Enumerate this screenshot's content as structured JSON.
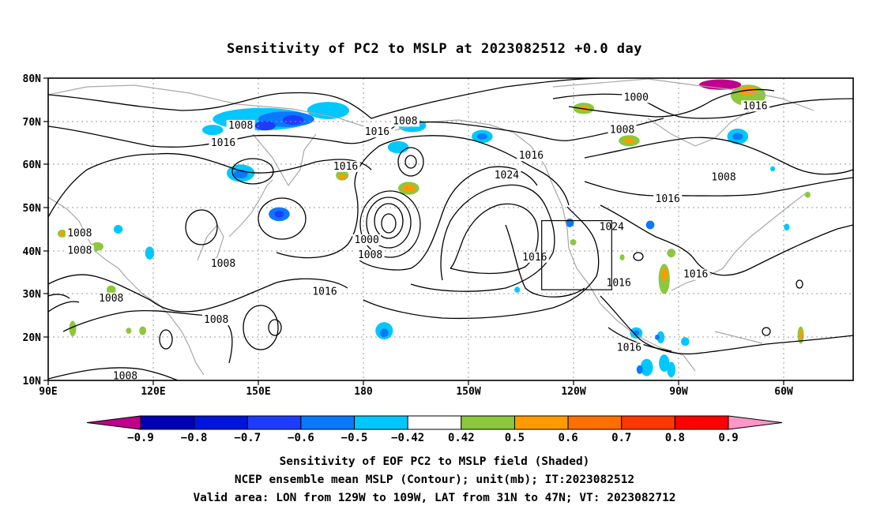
{
  "title": "Sensitivity of PC2 to MSLP at 2023082512 +0.0 day",
  "lat_ticks": [
    "80N",
    "70N",
    "60N",
    "50N",
    "40N",
    "30N",
    "20N",
    "10N"
  ],
  "lon_ticks": [
    "90E",
    "120E",
    "150E",
    "180",
    "150W",
    "120W",
    "90W",
    "60W"
  ],
  "contour_labels": [
    {
      "text": "1008",
      "lon": 145,
      "lat": 68.5
    },
    {
      "text": "1016",
      "lon": 140,
      "lat": 64.5
    },
    {
      "text": "1016",
      "lon": 184,
      "lat": 67
    },
    {
      "text": "1008",
      "lon": 192,
      "lat": 69.5
    },
    {
      "text": "1016",
      "lon": 175,
      "lat": 59
    },
    {
      "text": "1016",
      "lon": 228,
      "lat": 61.5
    },
    {
      "text": "1024",
      "lon": 221,
      "lat": 57
    },
    {
      "text": "1000",
      "lon": 258,
      "lat": 75
    },
    {
      "text": "1008",
      "lon": 254,
      "lat": 67.5
    },
    {
      "text": "1016",
      "lon": 292,
      "lat": 73
    },
    {
      "text": "1008",
      "lon": 283,
      "lat": 56.5
    },
    {
      "text": "1016",
      "lon": 267,
      "lat": 51.5
    },
    {
      "text": "1000",
      "lon": 181,
      "lat": 42
    },
    {
      "text": "1008",
      "lon": 182,
      "lat": 38.5
    },
    {
      "text": "1016",
      "lon": 229,
      "lat": 38
    },
    {
      "text": "1024",
      "lon": 251,
      "lat": 45
    },
    {
      "text": "1016",
      "lon": 253,
      "lat": 32
    },
    {
      "text": "1016",
      "lon": 275,
      "lat": 34
    },
    {
      "text": "1016",
      "lon": 256,
      "lat": 17
    },
    {
      "text": "1016",
      "lon": 169,
      "lat": 30
    },
    {
      "text": "1008",
      "lon": 140,
      "lat": 36.5
    },
    {
      "text": "1008",
      "lon": 99,
      "lat": 43.5
    },
    {
      "text": "1008",
      "lon": 99,
      "lat": 39.5
    },
    {
      "text": "1008",
      "lon": 108,
      "lat": 28.5
    },
    {
      "text": "1008",
      "lon": 138,
      "lat": 23.5
    },
    {
      "text": "1008",
      "lon": 112,
      "lat": 10.5
    }
  ],
  "colorbar": {
    "colors": [
      "#c0008c",
      "#0000b4",
      "#0014dc",
      "#1e3cff",
      "#0a78ff",
      "#00c8ff",
      "#ffffff",
      "#8cc83c",
      "#ff9b00",
      "#ff6e00",
      "#ff3700",
      "#ff0000",
      "#ff96c8"
    ],
    "labels": [
      "−0.9",
      "−0.8",
      "−0.7",
      "−0.6",
      "−0.5",
      "−0.42",
      "0.42",
      "0.5",
      "0.6",
      "0.7",
      "0.8",
      "0.9"
    ]
  },
  "caption": {
    "line1": "Sensitivity of EOF PC2 to MSLP field (Shaded)",
    "line2": "NCEP ensemble mean MSLP (Contour); unit(mb); IT:2023082512",
    "line3": "Valid area: LON from 129W to 109W, LAT from 31N to 47N; VT: 2023082712"
  },
  "valid_area": {
    "lon_min": -129,
    "lon_max": -109,
    "lat_min": 31,
    "lat_max": 47
  },
  "map_extent": {
    "lon_min": 90,
    "lon_max": 320,
    "lat_min": 10,
    "lat_max": 80
  },
  "shaded_blobs": [
    {
      "lon": 151,
      "lat": 70.5,
      "rx": 14,
      "ry": 2.6,
      "color": "#00c8ff"
    },
    {
      "lon": 158,
      "lat": 70.5,
      "rx": 8,
      "ry": 1.8,
      "color": "#0a78ff"
    },
    {
      "lon": 160,
      "lat": 70.3,
      "rx": 3,
      "ry": 1.1,
      "color": "#1e3cff"
    },
    {
      "lon": 152,
      "lat": 69.0,
      "rx": 3,
      "ry": 1.1,
      "color": "#1e3cff"
    },
    {
      "lon": 170,
      "lat": 72.5,
      "rx": 6,
      "ry": 2,
      "color": "#00c8ff"
    },
    {
      "lon": 137,
      "lat": 68.0,
      "rx": 3,
      "ry": 1.2,
      "color": "#00c8ff"
    },
    {
      "lon": 145,
      "lat": 58.0,
      "rx": 4,
      "ry": 2,
      "color": "#00c8ff"
    },
    {
      "lon": 145,
      "lat": 57.8,
      "rx": 2,
      "ry": 1,
      "color": "#0a78ff"
    },
    {
      "lon": 156,
      "lat": 48.5,
      "rx": 3,
      "ry": 1.6,
      "color": "#0a78ff"
    },
    {
      "lon": 156,
      "lat": 48.5,
      "rx": 1.3,
      "ry": 0.8,
      "color": "#1e3cff"
    },
    {
      "lon": 110,
      "lat": 45.0,
      "rx": 1.3,
      "ry": 1,
      "color": "#00c8ff"
    },
    {
      "lon": 174,
      "lat": 57.5,
      "rx": 1.8,
      "ry": 1.2,
      "color": "#8cc83c"
    },
    {
      "lon": 174,
      "lat": 57.2,
      "rx": 1,
      "ry": 0.6,
      "color": "#ff9b00"
    },
    {
      "lon": 194,
      "lat": 69.0,
      "rx": 4,
      "ry": 1.5,
      "color": "#00c8ff"
    },
    {
      "lon": 190,
      "lat": 64.0,
      "rx": 3,
      "ry": 1.4,
      "color": "#00c8ff"
    },
    {
      "lon": 193,
      "lat": 54.5,
      "rx": 3,
      "ry": 1.5,
      "color": "#8cc83c"
    },
    {
      "lon": 193,
      "lat": 54.5,
      "rx": 1.8,
      "ry": 0.9,
      "color": "#ff9b00"
    },
    {
      "lon": 186,
      "lat": 21.5,
      "rx": 2.5,
      "ry": 2,
      "color": "#00c8ff"
    },
    {
      "lon": 186,
      "lat": 21.0,
      "rx": 1.2,
      "ry": 1,
      "color": "#0a78ff"
    },
    {
      "lon": 214,
      "lat": 66.5,
      "rx": 3,
      "ry": 1.5,
      "color": "#00c8ff"
    },
    {
      "lon": 214,
      "lat": 66.5,
      "rx": 1.5,
      "ry": 0.7,
      "color": "#0a78ff"
    },
    {
      "lon": 243,
      "lat": 73.0,
      "rx": 3,
      "ry": 1.3,
      "color": "#8cc83c"
    },
    {
      "lon": 243,
      "lat": 73.0,
      "rx": 1.5,
      "ry": 0.6,
      "color": "#ff9b00"
    },
    {
      "lon": 256,
      "lat": 65.5,
      "rx": 3,
      "ry": 1.3,
      "color": "#8cc83c"
    },
    {
      "lon": 256,
      "lat": 65.5,
      "rx": 1.5,
      "ry": 0.6,
      "color": "#ff9b00"
    },
    {
      "lon": 290,
      "lat": 76.0,
      "rx": 5,
      "ry": 2.5,
      "color": "#8cc83c"
    },
    {
      "lon": 290,
      "lat": 77.0,
      "rx": 2.5,
      "ry": 1.1,
      "color": "#ff9b00"
    },
    {
      "lon": 282,
      "lat": 78.5,
      "rx": 6,
      "ry": 1.2,
      "color": "#c0008c"
    },
    {
      "lon": 287,
      "lat": 66.5,
      "rx": 3,
      "ry": 1.8,
      "color": "#00c8ff"
    },
    {
      "lon": 287,
      "lat": 66.5,
      "rx": 1.5,
      "ry": 0.8,
      "color": "#0a78ff"
    },
    {
      "lon": 239,
      "lat": 46.5,
      "rx": 1.2,
      "ry": 1,
      "color": "#0a78ff"
    },
    {
      "lon": 262,
      "lat": 46.0,
      "rx": 1.2,
      "ry": 1,
      "color": "#0a78ff"
    },
    {
      "lon": 240,
      "lat": 42.0,
      "rx": 0.9,
      "ry": 0.7,
      "color": "#8cc83c"
    },
    {
      "lon": 266,
      "lat": 33.5,
      "rx": 1.6,
      "ry": 3.5,
      "color": "#8cc83c"
    },
    {
      "lon": 266,
      "lat": 34.5,
      "rx": 0.9,
      "ry": 1.5,
      "color": "#ff9b00"
    },
    {
      "lon": 265,
      "lat": 20.0,
      "rx": 1.1,
      "ry": 1.4,
      "color": "#00c8ff"
    },
    {
      "lon": 258,
      "lat": 21.0,
      "rx": 1.8,
      "ry": 1.3,
      "color": "#00c8ff"
    },
    {
      "lon": 258,
      "lat": 21.0,
      "rx": 0.9,
      "ry": 0.6,
      "color": "#0a78ff"
    },
    {
      "lon": 264,
      "lat": 20.0,
      "rx": 0.7,
      "ry": 0.6,
      "color": "#0a78ff"
    },
    {
      "lon": 261,
      "lat": 13.0,
      "rx": 1.8,
      "ry": 2,
      "color": "#00c8ff"
    },
    {
      "lon": 259,
      "lat": 12.5,
      "rx": 0.9,
      "ry": 1,
      "color": "#0a78ff"
    },
    {
      "lon": 266,
      "lat": 14.0,
      "rx": 1.5,
      "ry": 2,
      "color": "#00c8ff"
    },
    {
      "lon": 268,
      "lat": 12.5,
      "rx": 1.2,
      "ry": 1.8,
      "color": "#00c8ff"
    },
    {
      "lon": 272,
      "lat": 19.0,
      "rx": 1.2,
      "ry": 1,
      "color": "#00c8ff"
    },
    {
      "lon": 305,
      "lat": 20.5,
      "rx": 0.9,
      "ry": 2,
      "color": "#8cc83c"
    },
    {
      "lon": 305,
      "lat": 20.5,
      "rx": 0.5,
      "ry": 1.2,
      "color": "#ff9b00"
    },
    {
      "lon": 94,
      "lat": 44.0,
      "rx": 1.3,
      "ry": 0.9,
      "color": "#8cc83c"
    },
    {
      "lon": 94,
      "lat": 44.0,
      "rx": 0.7,
      "ry": 0.5,
      "color": "#ff9b00"
    },
    {
      "lon": 104,
      "lat": 41.0,
      "rx": 1.8,
      "ry": 1,
      "color": "#8cc83c"
    },
    {
      "lon": 108,
      "lat": 31.0,
      "rx": 1.3,
      "ry": 1,
      "color": "#8cc83c"
    },
    {
      "lon": 119,
      "lat": 39.5,
      "rx": 1.3,
      "ry": 1.5,
      "color": "#00c8ff"
    },
    {
      "lon": 97,
      "lat": 22.0,
      "rx": 1,
      "ry": 1.8,
      "color": "#8cc83c"
    },
    {
      "lon": 117,
      "lat": 21.5,
      "rx": 1,
      "ry": 1,
      "color": "#8cc83c"
    },
    {
      "lon": 113,
      "lat": 21.5,
      "rx": 0.8,
      "ry": 0.7,
      "color": "#8cc83c"
    },
    {
      "lon": 254,
      "lat": 38.5,
      "rx": 0.7,
      "ry": 0.7,
      "color": "#8cc83c"
    },
    {
      "lon": 268,
      "lat": 39.5,
      "rx": 1.2,
      "ry": 1,
      "color": "#8cc83c"
    },
    {
      "lon": 301,
      "lat": 45.5,
      "rx": 0.8,
      "ry": 0.8,
      "color": "#00c8ff"
    },
    {
      "lon": 307,
      "lat": 53.0,
      "rx": 0.8,
      "ry": 0.7,
      "color": "#8cc83c"
    },
    {
      "lon": 297,
      "lat": 59.0,
      "rx": 0.7,
      "ry": 0.6,
      "color": "#00c8ff"
    },
    {
      "lon": 224,
      "lat": 31.0,
      "rx": 0.8,
      "ry": 0.7,
      "color": "#00c8ff"
    }
  ]
}
